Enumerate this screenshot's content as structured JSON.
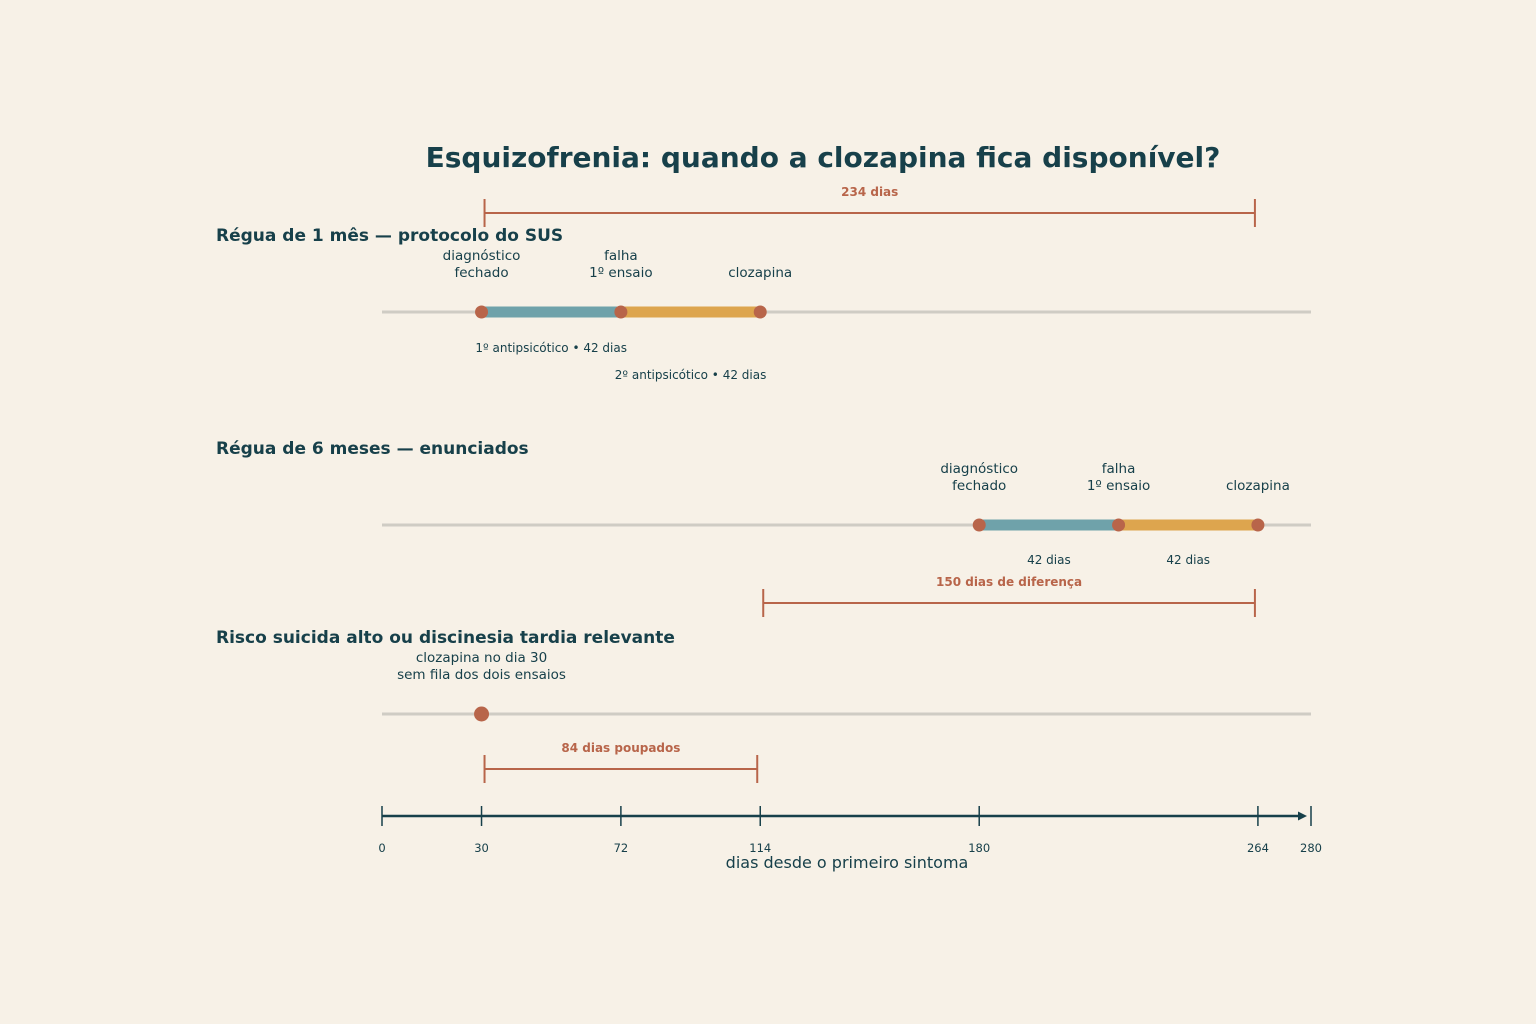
{
  "chart_data": {
    "type": "timeline",
    "title": "Esquizofrenia: quando a clozapina fica disponível?",
    "xlabel": "dias desde o primeiro sintoma",
    "xlim": [
      0,
      280
    ],
    "ticks": [
      0,
      30,
      72,
      114,
      180,
      264,
      280
    ],
    "rows": [
      {
        "title": "Régua de 1 mês — protocolo do SUS",
        "segments": [
          {
            "start": 30,
            "end": 72,
            "label": "1º antipsicótico • 42 dias",
            "color": "#6fa2aa"
          },
          {
            "start": 72,
            "end": 114,
            "label": "2º antipsicótico • 42 dias",
            "color": "#dda54e"
          }
        ],
        "events": [
          {
            "x": 30,
            "label": [
              "diagnóstico",
              "fechado"
            ]
          },
          {
            "x": 72,
            "label": [
              "falha",
              "1º ensaio"
            ]
          },
          {
            "x": 114,
            "label": [
              "clozapina"
            ]
          }
        ]
      },
      {
        "title": "Régua de 6 meses — enunciados",
        "segments": [
          {
            "start": 180,
            "end": 222,
            "label": "42 dias",
            "color": "#6fa2aa"
          },
          {
            "start": 222,
            "end": 264,
            "label": "42 dias",
            "color": "#dda54e"
          }
        ],
        "events": [
          {
            "x": 180,
            "label": [
              "diagnóstico",
              "fechado"
            ]
          },
          {
            "x": 222,
            "label": [
              "falha",
              "1º ensaio"
            ]
          },
          {
            "x": 264,
            "label": [
              "clozapina"
            ]
          }
        ]
      },
      {
        "title": "Risco suicida alto ou discinesia tardia relevante",
        "segments": [],
        "events": [
          {
            "x": 30,
            "label": [
              "clozapina no dia 30",
              "sem fila dos dois ensaios"
            ]
          }
        ]
      }
    ],
    "annotations": [
      {
        "start": 30,
        "end": 264,
        "label": "234 dias"
      },
      {
        "start": 114,
        "end": 264,
        "label": "150 dias de diferença"
      },
      {
        "start": 30,
        "end": 114,
        "label": "84 dias poupados"
      }
    ],
    "colors": {
      "text": "#17404a",
      "accent": "#b8654a",
      "trial1": "#6fa2aa",
      "trial2": "#dda54e",
      "track": "#cfccc4"
    }
  }
}
